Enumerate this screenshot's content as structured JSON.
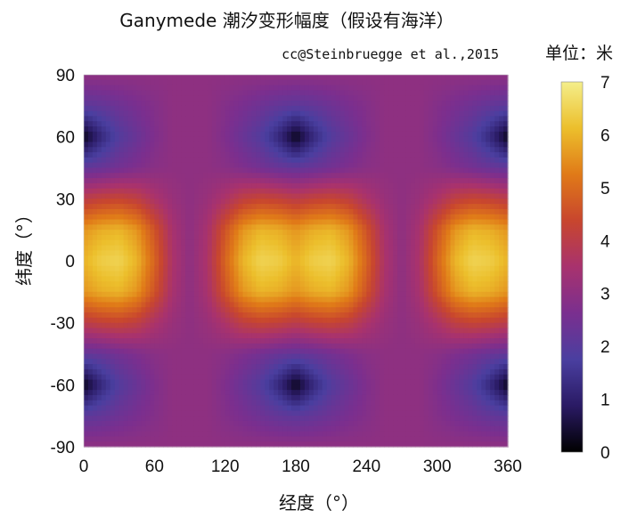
{
  "chart_data": {
    "type": "heatmap",
    "title": "Ganymede 潮汐变形幅度（假设有海洋）",
    "subtitle": "cc@Steinbruegge et al.,2015",
    "colorbar_label": "单位：米",
    "xlabel": "经度（°）",
    "ylabel": "纬度（°）",
    "xlim": [
      0,
      360
    ],
    "ylim": [
      -90,
      90
    ],
    "x_ticks": [
      "0",
      "60",
      "120",
      "180",
      "240",
      "300",
      "360"
    ],
    "y_ticks": [
      "90",
      "60",
      "30",
      "0",
      "-30",
      "-60",
      "-90"
    ],
    "colorbar_range": [
      0,
      7
    ],
    "colorbar_ticks": [
      "7",
      "6",
      "5",
      "4",
      "3",
      "2",
      "1",
      "0"
    ],
    "colormap": [
      "#000000",
      "#2a1a64",
      "#4a3fa0",
      "#7a2f8f",
      "#a8326e",
      "#c8462e",
      "#e07a18",
      "#ecbf2c",
      "#f4ee8a"
    ],
    "x_values": [
      0,
      15,
      30,
      45,
      60,
      75,
      90,
      105,
      120,
      135,
      150,
      165,
      180,
      195,
      210,
      225,
      240,
      255,
      270,
      285,
      300,
      315,
      330,
      345,
      360
    ],
    "y_values": [
      90,
      75,
      60,
      45,
      30,
      15,
      0,
      -15,
      -30,
      -45,
      -60,
      -75,
      -90
    ],
    "z_values": [
      [
        3.0,
        3.0,
        3.0,
        3.0,
        3.0,
        3.0,
        3.0,
        3.0,
        3.0,
        3.0,
        3.0,
        3.0,
        3.0,
        3.0,
        3.0,
        3.0,
        3.0,
        3.0,
        3.0,
        3.0,
        3.0,
        3.0,
        3.0,
        3.0,
        3.0
      ],
      [
        2.1,
        2.2,
        2.4,
        2.6,
        2.8,
        3.0,
        3.0,
        3.0,
        2.8,
        2.6,
        2.4,
        2.2,
        2.1,
        2.2,
        2.4,
        2.6,
        2.8,
        3.0,
        3.0,
        3.0,
        2.8,
        2.6,
        2.4,
        2.2,
        2.1
      ],
      [
        0.2,
        1.2,
        1.9,
        2.3,
        2.7,
        3.0,
        3.0,
        3.0,
        2.7,
        2.3,
        1.9,
        1.2,
        0.2,
        1.2,
        1.9,
        2.3,
        2.7,
        3.0,
        3.0,
        3.0,
        2.7,
        2.3,
        1.9,
        1.2,
        0.2
      ],
      [
        2.2,
        2.3,
        2.5,
        2.7,
        2.9,
        3.0,
        3.0,
        3.0,
        2.9,
        2.7,
        2.5,
        2.3,
        2.2,
        2.3,
        2.5,
        2.7,
        2.9,
        3.0,
        3.0,
        3.0,
        2.9,
        2.7,
        2.5,
        2.3,
        2.2
      ],
      [
        4.0,
        4.2,
        4.3,
        4.1,
        3.6,
        3.2,
        3.0,
        3.2,
        3.6,
        4.1,
        4.3,
        4.2,
        4.0,
        4.2,
        4.3,
        4.1,
        3.6,
        3.2,
        3.0,
        3.2,
        3.6,
        4.1,
        4.3,
        4.2,
        4.0
      ],
      [
        5.6,
        5.9,
        6.0,
        5.6,
        4.6,
        3.5,
        3.0,
        3.5,
        4.6,
        5.6,
        6.0,
        5.9,
        5.6,
        5.9,
        6.0,
        5.6,
        4.6,
        3.5,
        3.0,
        3.5,
        4.6,
        5.6,
        6.0,
        5.9,
        5.6
      ],
      [
        6.0,
        6.4,
        6.5,
        6.0,
        4.9,
        3.6,
        3.0,
        3.6,
        4.9,
        6.0,
        6.5,
        6.4,
        6.0,
        6.4,
        6.5,
        6.0,
        4.9,
        3.6,
        3.0,
        3.6,
        4.9,
        6.0,
        6.5,
        6.4,
        6.0
      ],
      [
        5.6,
        5.9,
        6.0,
        5.6,
        4.6,
        3.5,
        3.0,
        3.5,
        4.6,
        5.6,
        6.0,
        5.9,
        5.6,
        5.9,
        6.0,
        5.6,
        4.6,
        3.5,
        3.0,
        3.5,
        4.6,
        5.6,
        6.0,
        5.9,
        5.6
      ],
      [
        4.0,
        4.2,
        4.3,
        4.1,
        3.6,
        3.2,
        3.0,
        3.2,
        3.6,
        4.1,
        4.3,
        4.2,
        4.0,
        4.2,
        4.3,
        4.1,
        3.6,
        3.2,
        3.0,
        3.2,
        3.6,
        4.1,
        4.3,
        4.2,
        4.0
      ],
      [
        2.2,
        2.3,
        2.5,
        2.7,
        2.9,
        3.0,
        3.0,
        3.0,
        2.9,
        2.7,
        2.5,
        2.3,
        2.2,
        2.3,
        2.5,
        2.7,
        2.9,
        3.0,
        3.0,
        3.0,
        2.9,
        2.7,
        2.5,
        2.3,
        2.2
      ],
      [
        0.2,
        1.2,
        1.9,
        2.3,
        2.7,
        3.0,
        3.0,
        3.0,
        2.7,
        2.3,
        1.9,
        1.2,
        0.2,
        1.2,
        1.9,
        2.3,
        2.7,
        3.0,
        3.0,
        3.0,
        2.7,
        2.3,
        1.9,
        1.2,
        0.2
      ],
      [
        2.1,
        2.2,
        2.4,
        2.6,
        2.8,
        3.0,
        3.0,
        3.0,
        2.8,
        2.6,
        2.4,
        2.2,
        2.1,
        2.2,
        2.4,
        2.6,
        2.8,
        3.0,
        3.0,
        3.0,
        2.8,
        2.6,
        2.4,
        2.2,
        2.1
      ],
      [
        3.0,
        3.0,
        3.0,
        3.0,
        3.0,
        3.0,
        3.0,
        3.0,
        3.0,
        3.0,
        3.0,
        3.0,
        3.0,
        3.0,
        3.0,
        3.0,
        3.0,
        3.0,
        3.0,
        3.0,
        3.0,
        3.0,
        3.0,
        3.0,
        3.0
      ]
    ],
    "grid": false,
    "legend": "colorbar-right"
  }
}
